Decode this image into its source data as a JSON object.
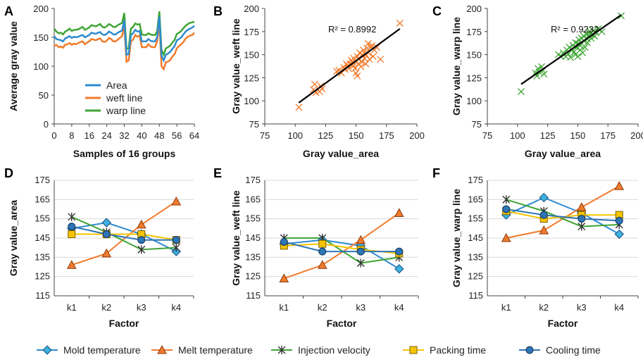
{
  "figure_legend": {
    "items": [
      "Mold temperature",
      "Melt temperature",
      "Injection velocity",
      "Packing time",
      "Cooling time"
    ]
  },
  "colors": {
    "blue": "#2E8BD0",
    "orange": "#F07B2C",
    "green": "#3FA535",
    "yellow": "#F5C400",
    "darkblue": "#2E75B6",
    "diamond": "#3CB1E0",
    "black": "#000000"
  },
  "chart_data": [
    {
      "id": "A",
      "type": "line",
      "panel_label": "A",
      "xlabel": "Samples of 16 groups",
      "ylabel": "Average gray value",
      "xlim": [
        0,
        64
      ],
      "ylim": [
        0,
        200
      ],
      "xticks": [
        "0",
        "8",
        "16",
        "24",
        "32",
        "40",
        "48",
        "56",
        "64"
      ],
      "yticks": [
        "0",
        "50",
        "100",
        "150",
        "200"
      ],
      "legend": [
        "Area",
        "weft line",
        "warp line"
      ],
      "series": [
        {
          "name": "Area",
          "color": "#2E8BD0",
          "values": [
            152,
            147,
            146,
            145,
            143,
            148,
            150,
            152,
            149,
            151,
            150,
            151,
            153,
            154,
            150,
            152,
            154,
            158,
            157,
            156,
            158,
            159,
            155,
            154,
            156,
            160,
            158,
            155,
            155,
            158,
            160,
            162,
            180,
            120,
            121,
            154,
            157,
            163,
            160,
            161,
            143,
            143,
            143,
            147,
            144,
            143,
            143,
            150,
            186,
            118,
            110,
            120,
            122,
            125,
            130,
            135,
            145,
            147,
            150,
            155,
            160,
            163,
            165,
            167,
            170
          ]
        },
        {
          "name": "weft line",
          "color": "#F07B2C",
          "values": [
            135,
            137,
            133,
            134,
            132,
            137,
            138,
            140,
            137,
            139,
            138,
            140,
            142,
            143,
            138,
            141,
            143,
            147,
            146,
            145,
            147,
            148,
            143,
            142,
            144,
            149,
            147,
            143,
            143,
            146,
            149,
            152,
            171,
            108,
            110,
            143,
            146,
            154,
            151,
            153,
            133,
            133,
            133,
            138,
            134,
            133,
            133,
            143,
            175,
            100,
            95,
            107,
            108,
            111,
            117,
            121,
            131,
            135,
            138,
            142,
            148,
            151,
            153,
            154,
            158
          ]
        },
        {
          "name": "warp line",
          "color": "#3FA535",
          "values": [
            165,
            160,
            157,
            158,
            155,
            160,
            162,
            165,
            161,
            163,
            163,
            164,
            166,
            168,
            163,
            165,
            167,
            171,
            170,
            169,
            171,
            173,
            168,
            167,
            169,
            173,
            171,
            168,
            168,
            171,
            173,
            175,
            192,
            130,
            131,
            165,
            168,
            174,
            172,
            173,
            155,
            154,
            154,
            157,
            155,
            154,
            154,
            160,
            195,
            128,
            120,
            131,
            133,
            136,
            141,
            146,
            156,
            158,
            161,
            166,
            170,
            173,
            175,
            176,
            177
          ]
        }
      ]
    },
    {
      "id": "B",
      "type": "scatter",
      "panel_label": "B",
      "xlabel": "Gray value_area",
      "ylabel": "Gray value_weft line",
      "xlim": [
        75,
        200
      ],
      "ylim": [
        75,
        200
      ],
      "xticks": [
        "75",
        "100",
        "125",
        "150",
        "175",
        "200"
      ],
      "yticks": [
        "75",
        "100",
        "125",
        "150",
        "175",
        "200"
      ],
      "annotation": "R² = 0.8992",
      "color": "#F07B2C",
      "trendline": [
        [
          103,
          98
        ],
        [
          186,
          178
        ]
      ],
      "points": [
        [
          103,
          93
        ],
        [
          115,
          112
        ],
        [
          116,
          118
        ],
        [
          117,
          109
        ],
        [
          120,
          110
        ],
        [
          121,
          116
        ],
        [
          122,
          113
        ],
        [
          134,
          132
        ],
        [
          136,
          133
        ],
        [
          138,
          130
        ],
        [
          140,
          136
        ],
        [
          141,
          134
        ],
        [
          142,
          140
        ],
        [
          143,
          138
        ],
        [
          144,
          135
        ],
        [
          145,
          140
        ],
        [
          146,
          144
        ],
        [
          147,
          142
        ],
        [
          148,
          146
        ],
        [
          148,
          138
        ],
        [
          149,
          135
        ],
        [
          150,
          143
        ],
        [
          150,
          130
        ],
        [
          151,
          148
        ],
        [
          151,
          127
        ],
        [
          152,
          145
        ],
        [
          152,
          140
        ],
        [
          153,
          152
        ],
        [
          154,
          137
        ],
        [
          155,
          150
        ],
        [
          155,
          142
        ],
        [
          156,
          155
        ],
        [
          157,
          146
        ],
        [
          158,
          150
        ],
        [
          158,
          140
        ],
        [
          159,
          157
        ],
        [
          160,
          162
        ],
        [
          160,
          152
        ],
        [
          161,
          145
        ],
        [
          162,
          158
        ],
        [
          163,
          160
        ],
        [
          164,
          148
        ],
        [
          165,
          155
        ],
        [
          167,
          158
        ],
        [
          170,
          145
        ],
        [
          186,
          184
        ]
      ]
    },
    {
      "id": "C",
      "type": "scatter",
      "panel_label": "C",
      "xlabel": "Gray value_area",
      "ylabel": "Gray value_warp line",
      "xlim": [
        75,
        200
      ],
      "ylim": [
        75,
        200
      ],
      "xticks": [
        "75",
        "100",
        "125",
        "150",
        "175",
        "200"
      ],
      "yticks": [
        "75",
        "100",
        "125",
        "150",
        "175",
        "200"
      ],
      "annotation": "R² = 0.9232",
      "color": "#3FA535",
      "trendline": [
        [
          103,
          118
        ],
        [
          186,
          193
        ]
      ],
      "points": [
        [
          103,
          110
        ],
        [
          115,
          130
        ],
        [
          116,
          127
        ],
        [
          117,
          135
        ],
        [
          118,
          131
        ],
        [
          120,
          137
        ],
        [
          121,
          133
        ],
        [
          122,
          129
        ],
        [
          134,
          150
        ],
        [
          136,
          148
        ],
        [
          138,
          152
        ],
        [
          140,
          148
        ],
        [
          141,
          155
        ],
        [
          142,
          151
        ],
        [
          143,
          158
        ],
        [
          144,
          147
        ],
        [
          145,
          155
        ],
        [
          146,
          160
        ],
        [
          147,
          153
        ],
        [
          148,
          163
        ],
        [
          148,
          150
        ],
        [
          149,
          158
        ],
        [
          150,
          148
        ],
        [
          150,
          162
        ],
        [
          151,
          166
        ],
        [
          152,
          155
        ],
        [
          152,
          160
        ],
        [
          153,
          168
        ],
        [
          154,
          152
        ],
        [
          155,
          165
        ],
        [
          155,
          170
        ],
        [
          156,
          158
        ],
        [
          157,
          172
        ],
        [
          158,
          167
        ],
        [
          158,
          163
        ],
        [
          159,
          170
        ],
        [
          160,
          173
        ],
        [
          160,
          175
        ],
        [
          161,
          168
        ],
        [
          162,
          172
        ],
        [
          163,
          176
        ],
        [
          164,
          170
        ],
        [
          165,
          174
        ],
        [
          167,
          178
        ],
        [
          170,
          175
        ],
        [
          186,
          192
        ]
      ]
    },
    {
      "id": "D",
      "type": "line",
      "panel_label": "D",
      "xlabel": "Factor",
      "ylabel": "Gray value_area",
      "categories": [
        "k1",
        "k2",
        "k3",
        "k4"
      ],
      "ylim": [
        115,
        175
      ],
      "yticks": [
        "115",
        "125",
        "135",
        "145",
        "155",
        "165",
        "175"
      ],
      "series": [
        {
          "name": "Mold temperature",
          "values": [
            150,
            153,
            147,
            138
          ]
        },
        {
          "name": "Melt temperature",
          "values": [
            131,
            137,
            152,
            164
          ]
        },
        {
          "name": "Injection velocity",
          "values": [
            156,
            148,
            139,
            140
          ]
        },
        {
          "name": "Packing time",
          "values": [
            147,
            147,
            147,
            144
          ]
        },
        {
          "name": "Cooling time",
          "values": [
            151,
            147,
            144,
            144
          ]
        }
      ]
    },
    {
      "id": "E",
      "type": "line",
      "panel_label": "E",
      "xlabel": "Factor",
      "ylabel": "Gray value_weft line",
      "categories": [
        "k1",
        "k2",
        "k3",
        "k4"
      ],
      "ylim": [
        115,
        175
      ],
      "yticks": [
        "115",
        "125",
        "135",
        "145",
        "155",
        "165",
        "175"
      ],
      "series": [
        {
          "name": "Mold temperature",
          "values": [
            142,
            144,
            141,
            129
          ]
        },
        {
          "name": "Melt temperature",
          "values": [
            124,
            131,
            144,
            158
          ]
        },
        {
          "name": "Injection velocity",
          "values": [
            145,
            145,
            132,
            135
          ]
        },
        {
          "name": "Packing time",
          "values": [
            141,
            142,
            139,
            137
          ]
        },
        {
          "name": "Cooling time",
          "values": [
            143,
            138,
            138,
            138
          ]
        }
      ]
    },
    {
      "id": "F",
      "type": "line",
      "panel_label": "F",
      "xlabel": "Factor",
      "ylabel": "Gray value_warp line",
      "categories": [
        "k1",
        "k2",
        "k3",
        "k4"
      ],
      "ylim": [
        115,
        175
      ],
      "yticks": [
        "115",
        "125",
        "135",
        "145",
        "155",
        "165",
        "175"
      ],
      "series": [
        {
          "name": "Mold temperature",
          "values": [
            157,
            166,
            158,
            147
          ]
        },
        {
          "name": "Melt temperature",
          "values": [
            145,
            149,
            161,
            172
          ]
        },
        {
          "name": "Injection velocity",
          "values": [
            165,
            159,
            151,
            152
          ]
        },
        {
          "name": "Packing time",
          "values": [
            159,
            155,
            157,
            157
          ]
        },
        {
          "name": "Cooling time",
          "values": [
            160,
            157,
            155,
            154
          ]
        }
      ]
    }
  ]
}
